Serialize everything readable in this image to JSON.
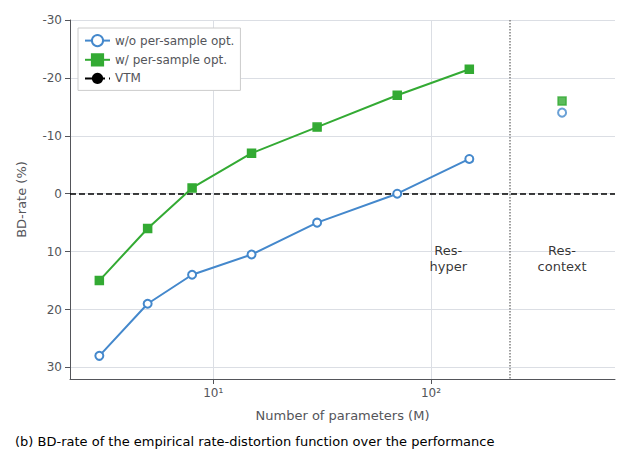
{
  "chart_data": {
    "type": "line",
    "xlabel": "Number of parameters (M)",
    "ylabel": "BD-rate (%)",
    "caption": "(b) BD-rate of the empirical rate-distortion function over the performance",
    "log": "x",
    "xlim": [
      2.2,
      700
    ],
    "ylim": [
      32,
      -30
    ],
    "xticks": [
      {
        "value": 10,
        "label": "10¹"
      },
      {
        "value": 100,
        "label": "10²"
      }
    ],
    "yticks": [
      -30,
      -20,
      -10,
      0,
      10,
      20,
      30
    ],
    "grid": true,
    "legend": "upper left",
    "series": [
      {
        "name": "w/o per-sample opt.",
        "type": "line",
        "color": "#4488cc",
        "marker": "circle_open",
        "x": [
          3,
          5,
          8,
          15,
          30,
          70,
          150
        ],
        "values": [
          28,
          19,
          14,
          10.5,
          5,
          0,
          -6
        ]
      },
      {
        "type": "scatter",
        "color": "#4488cc",
        "marker": "circle_open",
        "x": [
          400
        ],
        "values": [
          -14
        ]
      },
      {
        "name": "w/ per-sample opt.",
        "type": "line",
        "color": "#33aa33",
        "marker": "square",
        "x": [
          3,
          5,
          8,
          15,
          30,
          70,
          150
        ],
        "values": [
          15,
          6,
          -1,
          -7,
          -11.5,
          -17,
          -21.5
        ]
      },
      {
        "type": "scatter",
        "color": "#33aa33",
        "marker": "square",
        "x": [
          400
        ],
        "values": [
          -16
        ]
      }
    ],
    "reference_lines": [
      {
        "name": "VTM",
        "axis": "y",
        "value": 0,
        "color": "#000000",
        "line_style": "dashed"
      },
      {
        "axis": "x",
        "value": 230,
        "color": "#808080",
        "line_style": "dotted"
      }
    ],
    "annotations": [
      {
        "text": "Res-\nhyper",
        "x": 120,
        "y": 8
      },
      {
        "text": "Res-\ncontext",
        "x": 400,
        "y": 8
      }
    ]
  }
}
